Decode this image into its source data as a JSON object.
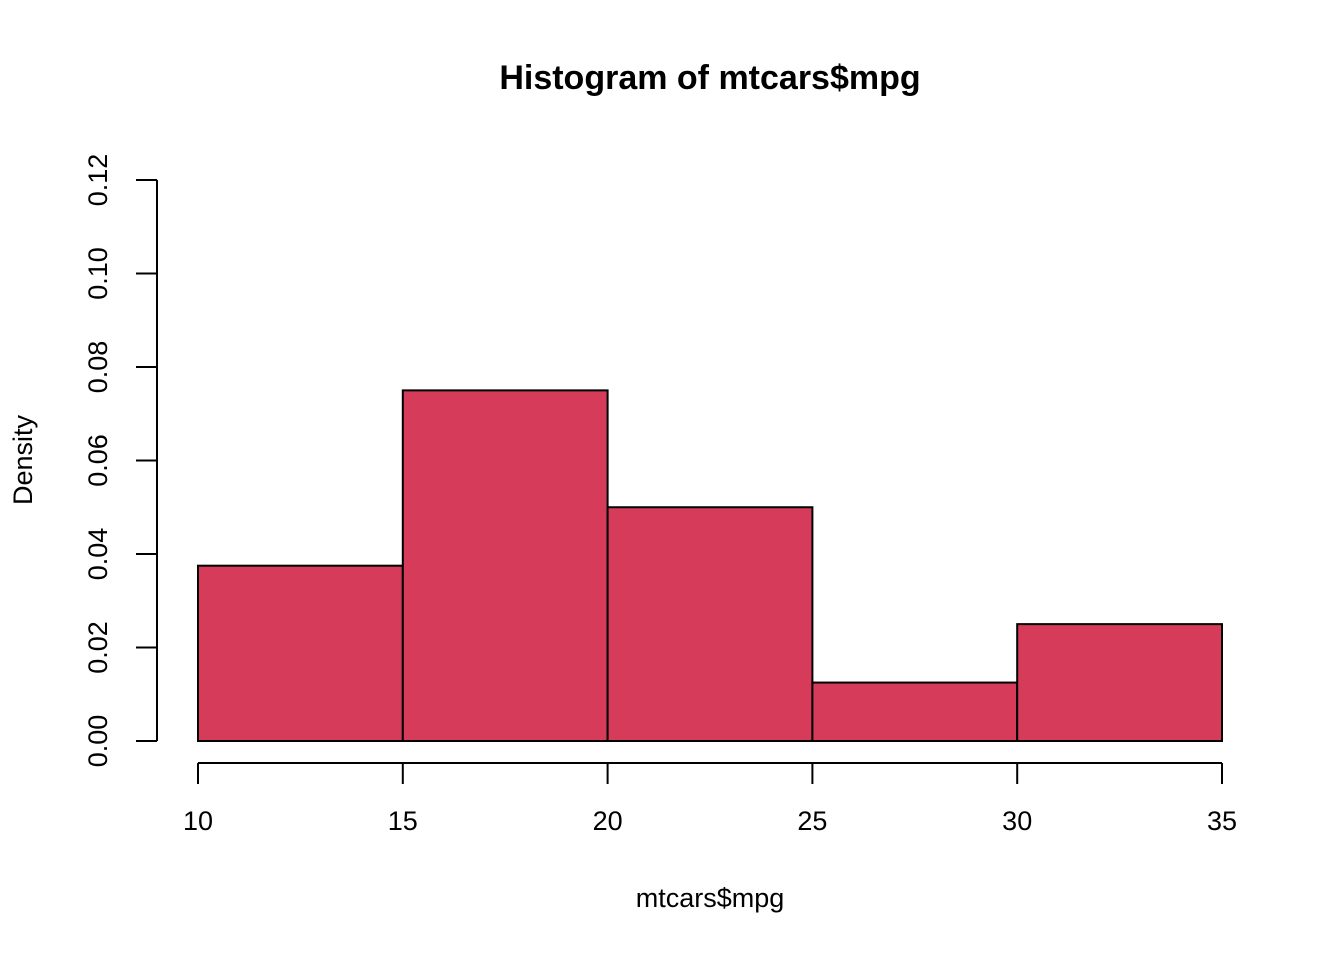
{
  "chart_data": {
    "type": "histogram",
    "title": "Histogram of mtcars$mpg",
    "x_label": "mtcars$mpg",
    "y_label": "Density",
    "bins": [
      10,
      15,
      20,
      25,
      30,
      35
    ],
    "values": [
      0.0375,
      0.075,
      0.05,
      0.0125,
      0.025
    ],
    "color": "#d63c5a",
    "xlim": [
      10,
      35
    ],
    "xticks": [
      10,
      15,
      20,
      25,
      30,
      35
    ],
    "ylim": [
      0,
      0.12
    ],
    "yticks": [
      {
        "value": 0,
        "label": "0.00"
      },
      {
        "value": 0.02,
        "label": "0.02"
      },
      {
        "value": 0.04,
        "label": "0.04"
      },
      {
        "value": 0.06,
        "label": "0.06"
      },
      {
        "value": 0.08,
        "label": "0.08"
      },
      {
        "value": 0.1,
        "label": "0.10"
      },
      {
        "value": 0.12,
        "label": "0.12"
      }
    ]
  }
}
